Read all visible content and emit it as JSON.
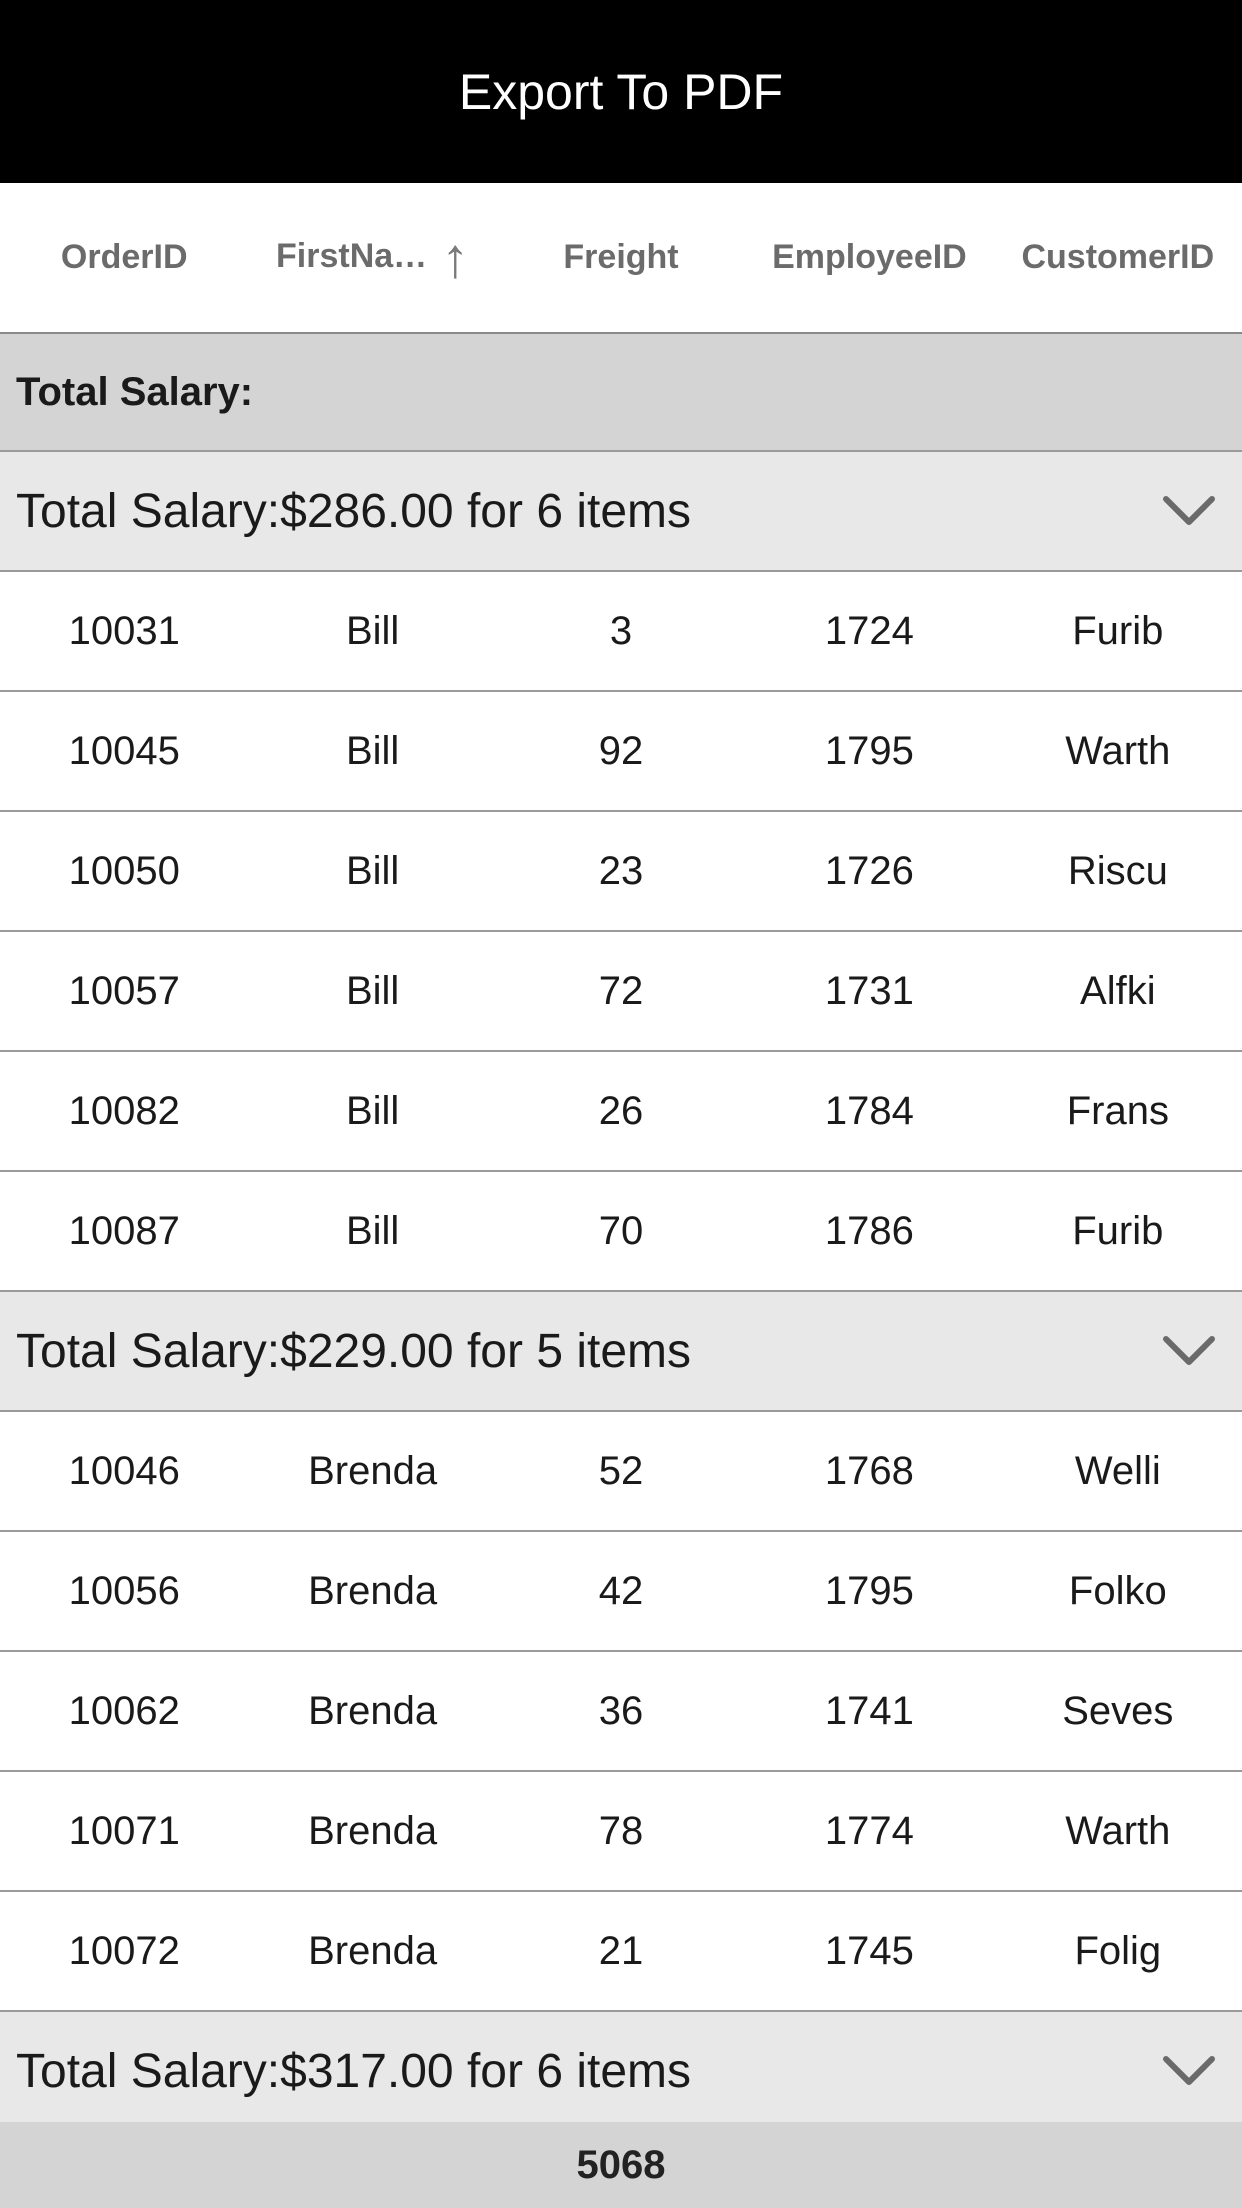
{
  "toolbar": {
    "export_label": "Export To PDF"
  },
  "header": {
    "columns": [
      "OrderID",
      "FirstNa…",
      "Freight",
      "EmployeeID",
      "CustomerID"
    ],
    "sort_indicator": "↑"
  },
  "summary": {
    "label": "Total Salary:"
  },
  "groups": [
    {
      "title": "Total Salary:$286.00 for 6 items",
      "rows": [
        [
          "10031",
          "Bill",
          "3",
          "1724",
          "Furib"
        ],
        [
          "10045",
          "Bill",
          "92",
          "1795",
          "Warth"
        ],
        [
          "10050",
          "Bill",
          "23",
          "1726",
          "Riscu"
        ],
        [
          "10057",
          "Bill",
          "72",
          "1731",
          "Alfki"
        ],
        [
          "10082",
          "Bill",
          "26",
          "1784",
          "Frans"
        ],
        [
          "10087",
          "Bill",
          "70",
          "1786",
          "Furib"
        ]
      ]
    },
    {
      "title": "Total Salary:$229.00 for 5 items",
      "rows": [
        [
          "10046",
          "Brenda",
          "52",
          "1768",
          "Welli"
        ],
        [
          "10056",
          "Brenda",
          "42",
          "1795",
          "Folko"
        ],
        [
          "10062",
          "Brenda",
          "36",
          "1741",
          "Seves"
        ],
        [
          "10071",
          "Brenda",
          "78",
          "1774",
          "Warth"
        ],
        [
          "10072",
          "Brenda",
          "21",
          "1745",
          "Folig"
        ]
      ]
    },
    {
      "title": "Total Salary:$317.00 for 6 items",
      "rows": []
    }
  ],
  "footer": {
    "total": "5068"
  },
  "icons": {
    "group_toggle": "chevron-down-icon",
    "sort": "sort-ascending-arrow-icon"
  }
}
